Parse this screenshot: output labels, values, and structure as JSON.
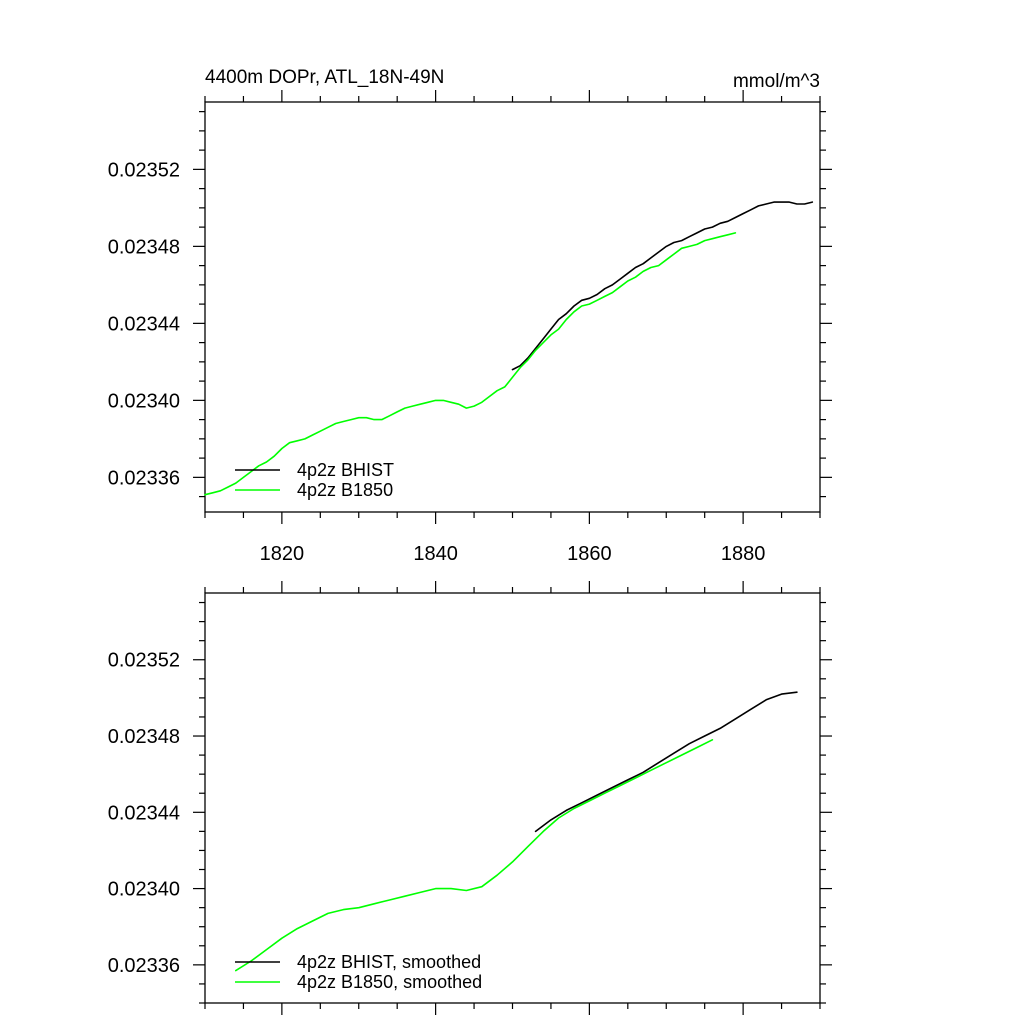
{
  "chart_data": [
    {
      "type": "line",
      "title": "4400m DOPr, ATL_18N-49N",
      "units": "mmol/m^3",
      "xlabel": "",
      "ylabel": "",
      "xlim": [
        1810,
        1890
      ],
      "ylim": [
        0.23342,
        0.023555
      ],
      "x_ticks": [
        1820,
        1840,
        1860,
        1880
      ],
      "x_tick_labels": [
        "1820",
        "1840",
        "1860",
        "1880"
      ],
      "y_ticks": [
        0.02336,
        0.0234,
        0.02344,
        0.02348,
        0.02352
      ],
      "y_tick_labels": [
        "0.02336",
        "0.02340",
        "0.02344",
        "0.02348",
        "0.02352"
      ],
      "legend_position": "bottom-left",
      "series": [
        {
          "name": "4p2z BHIST",
          "color": "#000000",
          "x": [
            1850,
            1851,
            1852,
            1853,
            1854,
            1855,
            1856,
            1857,
            1858,
            1859,
            1860,
            1861,
            1862,
            1863,
            1864,
            1865,
            1866,
            1867,
            1868,
            1869,
            1870,
            1871,
            1872,
            1873,
            1874,
            1875,
            1876,
            1877,
            1878,
            1879,
            1880,
            1881,
            1882,
            1883,
            1884,
            1885,
            1886,
            1887,
            1888,
            1889
          ],
          "y": [
            0.023416,
            0.023418,
            0.023422,
            0.023427,
            0.023432,
            0.023437,
            0.023442,
            0.023445,
            0.023449,
            0.023452,
            0.023453,
            0.023455,
            0.023458,
            0.02346,
            0.023463,
            0.023466,
            0.023469,
            0.023471,
            0.023474,
            0.023477,
            0.02348,
            0.023482,
            0.023483,
            0.023485,
            0.023487,
            0.023489,
            0.02349,
            0.023492,
            0.023493,
            0.023495,
            0.023497,
            0.023499,
            0.023501,
            0.023502,
            0.023503,
            0.023503,
            0.023503,
            0.023502,
            0.023502,
            0.023503
          ]
        },
        {
          "name": "4p2z B1850",
          "color": "#00ff00",
          "x": [
            1810,
            1811,
            1812,
            1813,
            1814,
            1815,
            1816,
            1817,
            1818,
            1819,
            1820,
            1821,
            1822,
            1823,
            1824,
            1825,
            1826,
            1827,
            1828,
            1829,
            1830,
            1831,
            1832,
            1833,
            1834,
            1835,
            1836,
            1837,
            1838,
            1839,
            1840,
            1841,
            1842,
            1843,
            1844,
            1845,
            1846,
            1847,
            1848,
            1849,
            1850,
            1851,
            1852,
            1853,
            1854,
            1855,
            1856,
            1857,
            1858,
            1859,
            1860,
            1861,
            1862,
            1863,
            1864,
            1865,
            1866,
            1867,
            1868,
            1869,
            1870,
            1871,
            1872,
            1873,
            1874,
            1875,
            1876,
            1877,
            1878,
            1879
          ],
          "y": [
            0.023351,
            0.023352,
            0.023353,
            0.023355,
            0.023357,
            0.02336,
            0.023363,
            0.023366,
            0.023368,
            0.023371,
            0.023375,
            0.023378,
            0.023379,
            0.02338,
            0.023382,
            0.023384,
            0.023386,
            0.023388,
            0.023389,
            0.02339,
            0.023391,
            0.023391,
            0.02339,
            0.02339,
            0.023392,
            0.023394,
            0.023396,
            0.023397,
            0.023398,
            0.023399,
            0.0234,
            0.0234,
            0.023399,
            0.023398,
            0.023396,
            0.023397,
            0.023399,
            0.023402,
            0.023405,
            0.023407,
            0.023412,
            0.023417,
            0.023421,
            0.023426,
            0.02343,
            0.023434,
            0.023437,
            0.023442,
            0.023446,
            0.023449,
            0.02345,
            0.023452,
            0.023454,
            0.023456,
            0.023459,
            0.023462,
            0.023464,
            0.023467,
            0.023469,
            0.02347,
            0.023473,
            0.023476,
            0.023479,
            0.02348,
            0.023481,
            0.023483,
            0.023484,
            0.023485,
            0.023486,
            0.023487
          ]
        }
      ]
    },
    {
      "type": "line",
      "title": "",
      "xlabel": "",
      "ylabel": "",
      "xlim": [
        1810,
        1890
      ],
      "ylim": [
        0.02334,
        0.023555
      ],
      "x_ticks": [
        1820,
        1840,
        1860,
        1880
      ],
      "y_ticks": [
        0.02336,
        0.0234,
        0.02344,
        0.02348,
        0.02352
      ],
      "y_tick_labels": [
        "0.02336",
        "0.02340",
        "0.02344",
        "0.02348",
        "0.02352"
      ],
      "legend_position": "bottom-left",
      "series": [
        {
          "name": "4p2z BHIST, smoothed",
          "color": "#000000",
          "x": [
            1853,
            1855,
            1857,
            1859,
            1861,
            1863,
            1865,
            1867,
            1869,
            1871,
            1873,
            1875,
            1877,
            1879,
            1881,
            1883,
            1885,
            1887
          ],
          "y": [
            0.02343,
            0.023436,
            0.023441,
            0.023445,
            0.023449,
            0.023453,
            0.023457,
            0.023461,
            0.023466,
            0.023471,
            0.023476,
            0.02348,
            0.023484,
            0.023489,
            0.023494,
            0.023499,
            0.023502,
            0.023503
          ]
        },
        {
          "name": "4p2z B1850, smoothed",
          "color": "#00ff00",
          "x": [
            1814,
            1816,
            1818,
            1820,
            1822,
            1824,
            1826,
            1828,
            1830,
            1832,
            1834,
            1836,
            1838,
            1840,
            1842,
            1844,
            1846,
            1848,
            1850,
            1852,
            1854,
            1856,
            1858,
            1860,
            1862,
            1864,
            1866,
            1868,
            1870,
            1872,
            1874,
            1876
          ],
          "y": [
            0.023357,
            0.023362,
            0.023368,
            0.023374,
            0.023379,
            0.023383,
            0.023387,
            0.023389,
            0.02339,
            0.023392,
            0.023394,
            0.023396,
            0.023398,
            0.0234,
            0.0234,
            0.023399,
            0.023401,
            0.023407,
            0.023414,
            0.023422,
            0.02343,
            0.023437,
            0.023442,
            0.023446,
            0.02345,
            0.023454,
            0.023458,
            0.023462,
            0.023466,
            0.02347,
            0.023474,
            0.023478
          ]
        }
      ]
    }
  ]
}
